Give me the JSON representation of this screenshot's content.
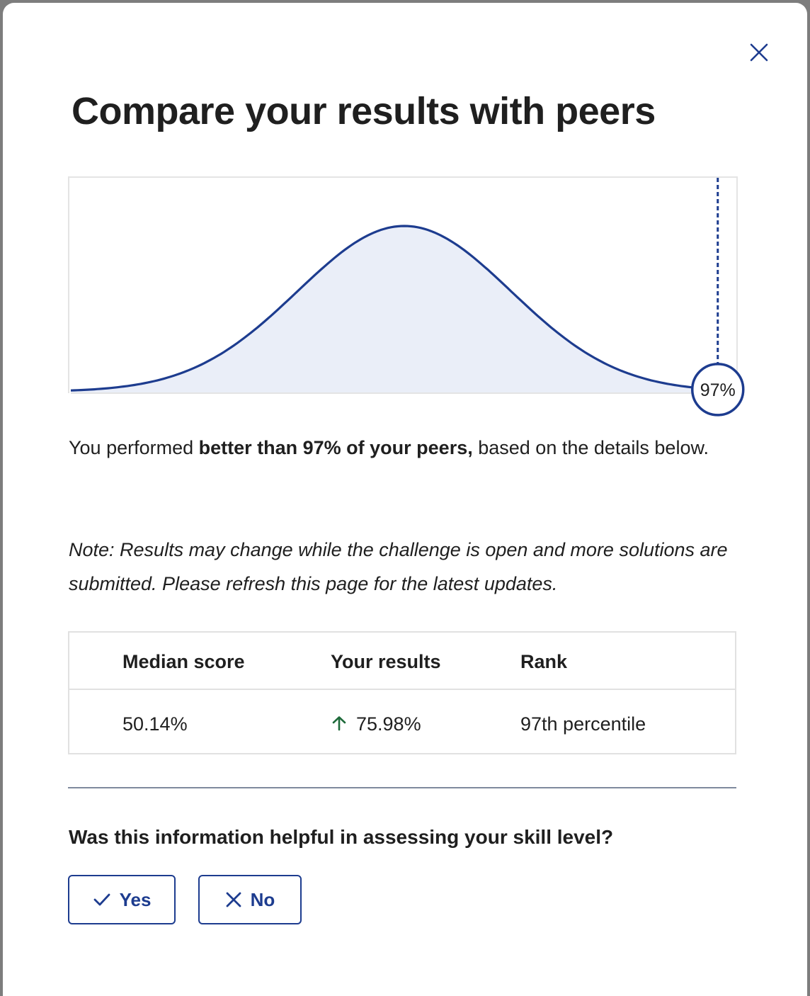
{
  "modal": {
    "title": "Compare your results with peers",
    "close_icon": "close-icon"
  },
  "chart_data": {
    "type": "area",
    "title": "",
    "xlabel": "",
    "ylabel": "",
    "distribution": "normal",
    "xlim": [
      0,
      100
    ],
    "median_percentile": 50,
    "marker": {
      "label": "97%",
      "percentile": 97
    },
    "colors": {
      "line": "#1d3c8f",
      "fill": "#eaeef8",
      "marker": "#1d3c8f"
    }
  },
  "summary": {
    "prefix": "You performed ",
    "emphasis": "better than 97% of your peers,",
    "suffix": " based on the details below."
  },
  "note": {
    "text": "Note: Results may change while the challenge is open and more solutions are submitted. Please refresh this page for the latest updates."
  },
  "stats": {
    "headers": [
      "Median score",
      "Your results",
      "Rank"
    ],
    "median_score": "50.14%",
    "your_results": "75.98%",
    "your_results_icon": "arrow-up-icon",
    "rank": "97th percentile",
    "positive_color": "#1e6a3a"
  },
  "feedback": {
    "question": "Was this information helpful in assessing your skill level?",
    "yes_label": "Yes",
    "yes_icon": "check-icon",
    "no_label": "No",
    "no_icon": "x-icon"
  },
  "colors": {
    "accent": "#1d3c8f",
    "text": "#1f1f1f",
    "border": "#e1e1e1"
  }
}
